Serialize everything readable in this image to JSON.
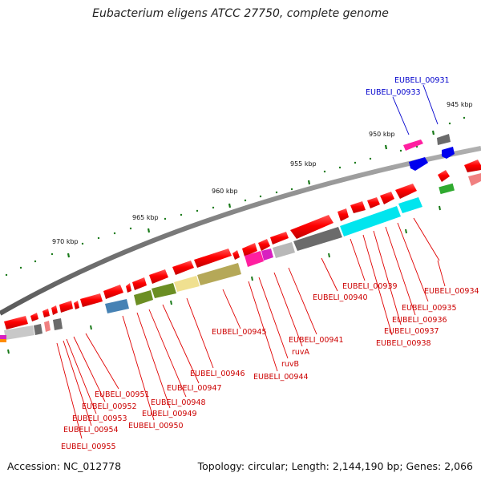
{
  "title": "Eubacterium eligens ATCC 27750, complete genome",
  "footer": {
    "accession": "Accession: NC_012778",
    "topology": "Topology: circular; Length: 2,144,190 bp; Genes: 2,066"
  },
  "scale_labels": [
    "945 kbp",
    "950 kbp",
    "955 kbp",
    "960 kbp",
    "965 kbp",
    "970 kbp"
  ],
  "gene_labels_blue": [
    "EUBELI_00931",
    "EUBELI_00933"
  ],
  "gene_labels_red": [
    "EUBELI_00934",
    "EUBELI_00935",
    "EUBELI_00936",
    "EUBELI_00937",
    "EUBELI_00938",
    "EUBELI_00939",
    "EUBELI_00940",
    "EUBELI_00941",
    "ruvA",
    "ruvB",
    "EUBELI_00944",
    "EUBELI_00945",
    "EUBELI_00946",
    "EUBELI_00947",
    "EUBELI_00948",
    "EUBELI_00949",
    "EUBELI_00950",
    "EUBELI_00951",
    "EUBELI_00952",
    "EUBELI_00953",
    "EUBELI_00954",
    "EUBELI_00955"
  ],
  "colors": {
    "cds": "#ff0000",
    "label_red": "#cc0000",
    "label_blue": "#0000cc",
    "backbone": "#808080",
    "tick": "#1a7a1a"
  }
}
